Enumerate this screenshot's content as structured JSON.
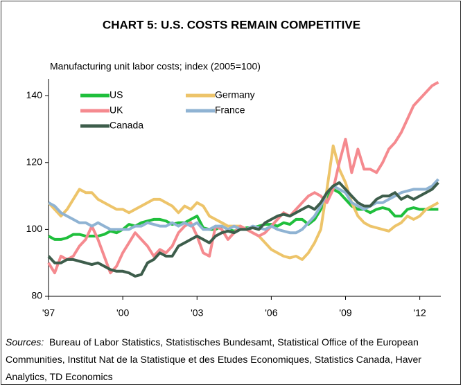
{
  "chart_data": {
    "type": "line",
    "title": "CHART 5: U.S. COSTS REMAIN COMPETITIVE",
    "subtitle": "Manufacturing unit labor costs; index (2005=100)",
    "x": [
      1997,
      1997.25,
      1997.5,
      1997.75,
      1998,
      1998.25,
      1998.5,
      1998.75,
      1999,
      1999.25,
      1999.5,
      1999.75,
      2000,
      2000.25,
      2000.5,
      2000.75,
      2001,
      2001.25,
      2001.5,
      2001.75,
      2002,
      2002.25,
      2002.5,
      2002.75,
      2003,
      2003.25,
      2003.5,
      2003.75,
      2004,
      2004.25,
      2004.5,
      2004.75,
      2005,
      2005.25,
      2005.5,
      2005.75,
      2006,
      2006.25,
      2006.5,
      2006.75,
      2007,
      2007.25,
      2007.5,
      2007.75,
      2008,
      2008.25,
      2008.5,
      2008.75,
      2009,
      2009.25,
      2009.5,
      2009.75,
      2010,
      2010.25,
      2010.5,
      2010.75,
      2011,
      2011.25,
      2011.5,
      2011.75,
      2012,
      2012.25,
      2012.5,
      2012.75
    ],
    "series": [
      {
        "name": "US",
        "color": "#1fbf3c",
        "values": [
          98,
          97,
          97,
          97.5,
          98.5,
          98.5,
          98,
          98,
          98,
          98.5,
          99.5,
          99,
          100,
          101.5,
          101,
          102,
          102.5,
          103,
          103,
          102.5,
          101.5,
          102,
          102,
          103,
          104,
          100.5,
          100,
          100,
          101,
          100,
          99.5,
          100,
          100.5,
          100.5,
          101,
          101.5,
          101.5,
          101,
          102,
          101.5,
          103,
          103,
          101.5,
          103,
          106,
          110,
          112,
          111,
          109,
          107,
          106,
          106,
          105,
          106,
          106.5,
          106,
          104,
          104,
          106,
          106.5,
          106,
          106,
          106,
          106
        ]
      },
      {
        "name": "Germany",
        "color": "#edc46a",
        "values": [
          108,
          106,
          104,
          106,
          109,
          112,
          111,
          111,
          109,
          108,
          107,
          106,
          106,
          105,
          106,
          107,
          108,
          109,
          109,
          108,
          107,
          105,
          107,
          106,
          108,
          107,
          104,
          103,
          102,
          101,
          101,
          101,
          100,
          99,
          98,
          96,
          94,
          93,
          92,
          91.5,
          92,
          91,
          93,
          96,
          100,
          112,
          125,
          118,
          114,
          108,
          104,
          102,
          101,
          100.5,
          100,
          99.5,
          101,
          102,
          104,
          103,
          104,
          106,
          107,
          108
        ]
      },
      {
        "name": "UK",
        "color": "#f58a8f",
        "values": [
          90,
          87,
          92,
          91,
          92,
          95,
          97,
          101,
          97,
          92,
          87,
          89,
          93,
          96,
          99,
          97,
          95,
          92,
          94,
          93,
          95,
          99,
          101,
          102,
          98,
          93,
          92,
          101,
          100,
          97,
          99,
          101,
          100,
          99,
          98,
          99,
          101,
          103,
          105,
          104,
          106,
          108,
          110,
          111,
          110,
          108,
          112,
          120,
          127,
          117,
          124,
          118,
          118,
          117,
          120,
          124,
          126,
          129,
          133,
          137,
          139,
          141,
          143,
          144
        ]
      },
      {
        "name": "France",
        "color": "#8fb3d3",
        "values": [
          108,
          107,
          105,
          104,
          103,
          102,
          102,
          101,
          102,
          101,
          100,
          100,
          100,
          100,
          101,
          101,
          102,
          101.5,
          101,
          101,
          102,
          101,
          102,
          101,
          102,
          100,
          100,
          101,
          101,
          100,
          101,
          100,
          100,
          101,
          100.5,
          100,
          101,
          100,
          99.5,
          99,
          99,
          100,
          102,
          104,
          107,
          111,
          113,
          112,
          111,
          108,
          107,
          106,
          107,
          108,
          108,
          109,
          110,
          111,
          111.5,
          112,
          112,
          112,
          113,
          115
        ]
      },
      {
        "name": "Canada",
        "color": "#3d5d4b",
        "values": [
          92,
          90,
          90,
          91,
          91,
          90.5,
          90,
          89.5,
          90,
          89,
          88,
          87.5,
          87.5,
          87,
          86,
          86.5,
          90,
          91,
          93,
          92,
          92,
          95,
          96,
          97,
          98,
          97,
          96,
          98,
          99,
          99.5,
          99,
          100,
          100,
          100.5,
          100,
          102,
          103,
          104,
          104.5,
          104,
          105,
          106,
          107,
          106,
          108,
          111,
          113,
          114,
          112,
          110,
          108,
          107,
          107,
          109,
          110,
          110,
          111,
          109,
          110,
          109,
          110,
          111,
          112,
          114
        ]
      }
    ],
    "xlim": [
      1997,
      2012.85
    ],
    "xticks": [
      {
        "value": 1997,
        "label": "'97"
      },
      {
        "value": 2000,
        "label": "'00"
      },
      {
        "value": 2003,
        "label": "'03"
      },
      {
        "value": 2006,
        "label": "'06"
      },
      {
        "value": 2009,
        "label": "'09"
      },
      {
        "value": 2012,
        "label": "'12"
      }
    ],
    "ylim": [
      80,
      145
    ],
    "yticks": [
      80,
      100,
      120,
      140
    ],
    "grid": false,
    "legend": "top-left",
    "sources": {
      "label": "Sources:",
      "text": "Bureau of Labor Statistics, Statistisches Bundesamt, Statistical Office of the European Communities, Institut Nat de la Statistique et des Etudes Economiques, Statistics Canada, Haver Analytics, TD Economics"
    }
  }
}
